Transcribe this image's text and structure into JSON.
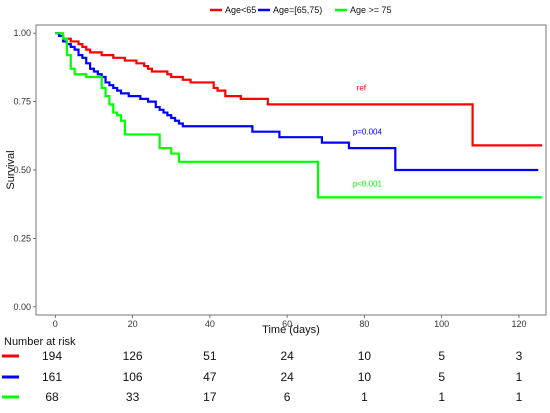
{
  "chart_data": {
    "type": "line",
    "xlabel": "Time (days)",
    "ylabel": "Survival",
    "xlim": [
      -5,
      127
    ],
    "ylim": [
      -0.03,
      1.03
    ],
    "x_ticks": [
      0,
      20,
      40,
      60,
      80,
      100,
      120
    ],
    "y_ticks": [
      0.0,
      0.25,
      0.5,
      0.75,
      1.0
    ],
    "y_tick_labels": [
      "0.00",
      "0.25",
      "0.50",
      "0.75",
      "1.00"
    ],
    "legend_position": "top",
    "series": [
      {
        "name": "Age<65",
        "color": "#ff0000",
        "step_points": [
          [
            0,
            1.0
          ],
          [
            1,
            0.99
          ],
          [
            2,
            0.98
          ],
          [
            4,
            0.97
          ],
          [
            6,
            0.96
          ],
          [
            7,
            0.95
          ],
          [
            8,
            0.94
          ],
          [
            9,
            0.93
          ],
          [
            12,
            0.92
          ],
          [
            15,
            0.91
          ],
          [
            18,
            0.9
          ],
          [
            21,
            0.89
          ],
          [
            23,
            0.88
          ],
          [
            24,
            0.87
          ],
          [
            25,
            0.86
          ],
          [
            29,
            0.85
          ],
          [
            30,
            0.84
          ],
          [
            33,
            0.83
          ],
          [
            35,
            0.82
          ],
          [
            41,
            0.8
          ],
          [
            42,
            0.79
          ],
          [
            44,
            0.77
          ],
          [
            48,
            0.76
          ],
          [
            55,
            0.74
          ],
          [
            108,
            0.74
          ],
          [
            108,
            0.59
          ],
          [
            126,
            0.59
          ]
        ],
        "annotation": "ref",
        "annotation_at": [
          78,
          0.79
        ]
      },
      {
        "name": "Age=[65,75)",
        "color": "#0000ff",
        "step_points": [
          [
            0,
            1.0
          ],
          [
            1,
            0.99
          ],
          [
            2,
            0.97
          ],
          [
            3,
            0.96
          ],
          [
            4,
            0.95
          ],
          [
            5,
            0.94
          ],
          [
            6,
            0.92
          ],
          [
            7,
            0.91
          ],
          [
            8,
            0.89
          ],
          [
            9,
            0.87
          ],
          [
            10,
            0.86
          ],
          [
            11,
            0.85
          ],
          [
            12,
            0.84
          ],
          [
            13,
            0.82
          ],
          [
            14,
            0.81
          ],
          [
            15,
            0.8
          ],
          [
            16,
            0.79
          ],
          [
            17,
            0.78
          ],
          [
            19,
            0.77
          ],
          [
            22,
            0.76
          ],
          [
            24,
            0.75
          ],
          [
            26,
            0.73
          ],
          [
            27,
            0.72
          ],
          [
            28,
            0.71
          ],
          [
            29,
            0.7
          ],
          [
            30,
            0.69
          ],
          [
            31,
            0.68
          ],
          [
            32,
            0.67
          ],
          [
            33,
            0.66
          ],
          [
            34,
            0.66
          ],
          [
            51,
            0.64
          ],
          [
            58,
            0.62
          ],
          [
            61,
            0.62
          ],
          [
            69,
            0.6
          ],
          [
            76,
            0.58
          ],
          [
            88,
            0.58
          ],
          [
            88,
            0.5
          ],
          [
            125,
            0.5
          ]
        ],
        "annotation": "p=0.004",
        "annotation_at": [
          77,
          0.63
        ]
      },
      {
        "name": "Age >= 75",
        "color": "#00ff00",
        "step_points": [
          [
            0,
            1.0
          ],
          [
            2,
            0.98
          ],
          [
            3,
            0.92
          ],
          [
            4,
            0.87
          ],
          [
            5,
            0.85
          ],
          [
            8,
            0.84
          ],
          [
            12,
            0.8
          ],
          [
            13,
            0.77
          ],
          [
            14,
            0.74
          ],
          [
            15,
            0.71
          ],
          [
            16,
            0.7
          ],
          [
            17,
            0.68
          ],
          [
            18,
            0.63
          ],
          [
            27,
            0.58
          ],
          [
            30,
            0.56
          ],
          [
            32,
            0.53
          ],
          [
            68,
            0.53
          ],
          [
            68,
            0.4
          ],
          [
            126,
            0.4
          ]
        ],
        "annotation": "p<0.001",
        "annotation_at": [
          77,
          0.44
        ]
      }
    ]
  },
  "risk_table": {
    "title": "Number at risk",
    "columns": [
      0,
      20,
      40,
      60,
      80,
      100,
      120
    ],
    "rows": [
      {
        "color": "#ff0000",
        "values": [
          "194",
          "126",
          "51",
          "24",
          "10",
          "5",
          "3"
        ]
      },
      {
        "color": "#0000ff",
        "values": [
          "161",
          "106",
          "47",
          "24",
          "10",
          "5",
          "1"
        ]
      },
      {
        "color": "#00ff00",
        "values": [
          "68",
          "33",
          "17",
          "6",
          "1",
          "1",
          "1"
        ]
      }
    ]
  }
}
